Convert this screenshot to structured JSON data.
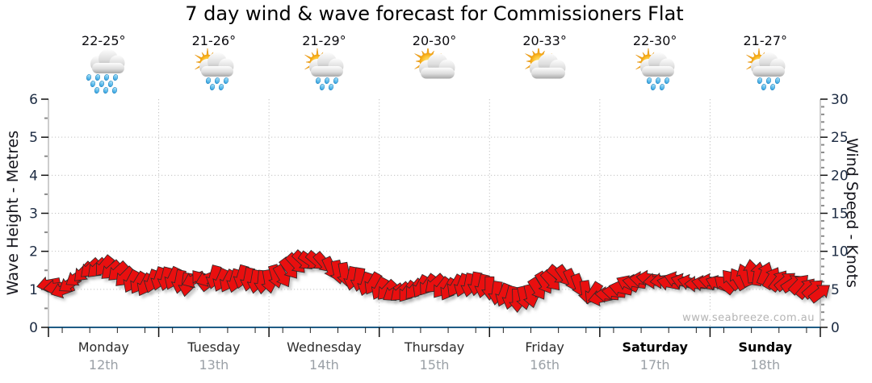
{
  "title": "7 day wind & wave forecast for Commissioners Flat",
  "watermark": "www.seabreeze.com.au",
  "days": [
    {
      "name": "Monday",
      "date": "12th",
      "temp": "22-25°",
      "icon": "rain-heavy",
      "bold": false
    },
    {
      "name": "Tuesday",
      "date": "13th",
      "temp": "21-26°",
      "icon": "sun-cloud-rain",
      "bold": false
    },
    {
      "name": "Wednesday",
      "date": "14th",
      "temp": "21-29°",
      "icon": "sun-cloud-rain",
      "bold": false
    },
    {
      "name": "Thursday",
      "date": "15th",
      "temp": "20-30°",
      "icon": "sun-cloud",
      "bold": false
    },
    {
      "name": "Friday",
      "date": "16th",
      "temp": "20-33°",
      "icon": "sun-cloud",
      "bold": false
    },
    {
      "name": "Saturday",
      "date": "17th",
      "temp": "22-30°",
      "icon": "sun-cloud-rain",
      "bold": true
    },
    {
      "name": "Sunday",
      "date": "18th",
      "temp": "21-27°",
      "icon": "sun-cloud-rain",
      "bold": true
    }
  ],
  "chart_data": {
    "type": "wind-arrows",
    "title": "7 day wind & wave forecast for Commissioners Flat",
    "left_axis": {
      "title": "Wave Height - Metres",
      "min": 0,
      "max": 6,
      "major_step": 1,
      "minor_step": 0.5,
      "grid": true
    },
    "right_axis": {
      "title": "Wind Speed - Knots",
      "min": 0,
      "max": 30,
      "major_step": 5,
      "minor_step": 1,
      "grid": false
    },
    "x_axis": {
      "days": 7,
      "day_gridlines": true,
      "minor_tick_hours": [
        3,
        9,
        15,
        21
      ]
    },
    "wind": {
      "interval_hours": 3,
      "speeds_kt": [
        5.5,
        5.0,
        6.5,
        7.5,
        7.8,
        7.2,
        6.2,
        5.6,
        6.2,
        6.5,
        5.8,
        6.3,
        6.5,
        6.1,
        6.4,
        6.0,
        6.2,
        6.8,
        8.3,
        8.8,
        8.5,
        7.2,
        6.4,
        5.8,
        5.2,
        4.3,
        4.8,
        5.3,
        5.6,
        5.0,
        5.6,
        5.8,
        5.2,
        4.1,
        3.4,
        4.2,
        5.6,
        6.8,
        6.3,
        4.7,
        3.9,
        4.5,
        5.6,
        6.4,
        6.2,
        6.0,
        6.2,
        5.8,
        6.0,
        5.7,
        6.6,
        7.2,
        7.0,
        6.4,
        6.0,
        5.3,
        4.7
      ],
      "directions_deg": [
        175,
        160,
        145,
        132,
        126,
        140,
        122,
        112,
        104,
        116,
        96,
        225,
        102,
        118,
        106,
        96,
        86,
        62,
        45,
        36,
        52,
        76,
        95,
        110,
        124,
        140,
        131,
        120,
        136,
        126,
        110,
        100,
        95,
        106,
        90,
        72,
        56,
        46,
        62,
        86,
        170,
        186,
        202,
        190,
        176,
        186,
        196,
        180,
        196,
        214,
        240,
        268,
        295,
        312,
        322,
        316,
        320
      ]
    },
    "colors": {
      "arrow_fill": "#e90f0f",
      "arrow_stroke": "#2a2a2a",
      "bottom_axis": "#1f5c85",
      "grid": "#c2c2c2",
      "tick_label": "#1b2a41"
    }
  }
}
